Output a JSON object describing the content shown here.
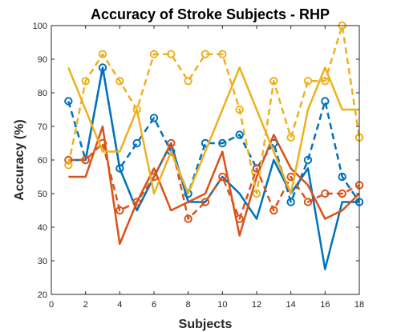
{
  "chart_data": {
    "type": "line",
    "title": "Accuracy of Stroke Subjects - RHP",
    "xlabel": "Subjects",
    "ylabel": "Accuracy (%)",
    "xlim": [
      0,
      18
    ],
    "ylim": [
      20,
      100
    ],
    "xticks": [
      0,
      2,
      4,
      6,
      8,
      10,
      12,
      14,
      16,
      18
    ],
    "yticks": [
      20,
      30,
      40,
      50,
      60,
      70,
      80,
      90,
      100
    ],
    "grid": false,
    "x": [
      1,
      2,
      3,
      4,
      5,
      6,
      7,
      8,
      9,
      10,
      11,
      12,
      13,
      14,
      15,
      16,
      17,
      18
    ],
    "series": [
      {
        "color": "#0072BD",
        "style": "dashed",
        "marker": "circle",
        "values": [
          77.5,
          60,
          87.5,
          57.5,
          65,
          72.5,
          62.5,
          50,
          65,
          65,
          67.5,
          57.5,
          65,
          47.5,
          60,
          77.5,
          55,
          47.5
        ]
      },
      {
        "color": "#0072BD",
        "style": "solid",
        "marker": "none",
        "values": [
          60,
          60,
          87.5,
          57.5,
          45,
          55,
          65,
          47.5,
          47.5,
          55,
          50,
          42.5,
          60,
          50,
          57.5,
          27.5,
          47.5,
          47.5
        ]
      },
      {
        "color": "#D95319",
        "style": "dashed",
        "marker": "circle",
        "values": [
          60,
          60,
          65,
          45,
          47.5,
          55,
          65,
          42.5,
          47.5,
          55,
          42.5,
          57.5,
          45,
          55,
          47.5,
          50,
          50,
          52.5
        ]
      },
      {
        "color": "#D95319",
        "style": "solid",
        "marker": "none",
        "values": [
          55,
          55,
          70,
          35,
          47.5,
          57.5,
          45,
          47.5,
          50,
          62.5,
          37.5,
          55,
          67.5,
          57.5,
          52.5,
          42.5,
          45,
          50
        ]
      },
      {
        "color": "#EDB120",
        "style": "dashed",
        "marker": "circle",
        "values": [
          58.5,
          83.5,
          91.5,
          83.5,
          75,
          91.5,
          91.5,
          83.5,
          91.5,
          91.5,
          75,
          50,
          83.5,
          66.7,
          83.5,
          83.5,
          100,
          66.7
        ]
      },
      {
        "color": "#EDB120",
        "style": "solid",
        "marker": "none",
        "values": [
          87.5,
          75,
          62.5,
          62.5,
          75,
          50,
          62.5,
          50,
          62.5,
          75,
          87.5,
          75,
          62.5,
          50,
          75,
          87.5,
          75,
          75
        ]
      }
    ]
  }
}
